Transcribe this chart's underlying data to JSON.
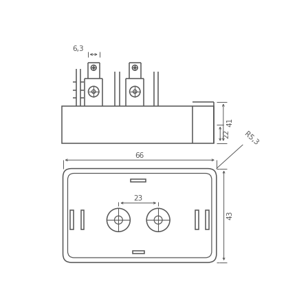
{
  "bg_color": "#ffffff",
  "line_color": "#555555",
  "dim_color": "#555555",
  "linewidth": 1.1,
  "dim_linewidth": 0.7,
  "fig_width": 4.16,
  "fig_height": 4.47,
  "dpi": 100
}
